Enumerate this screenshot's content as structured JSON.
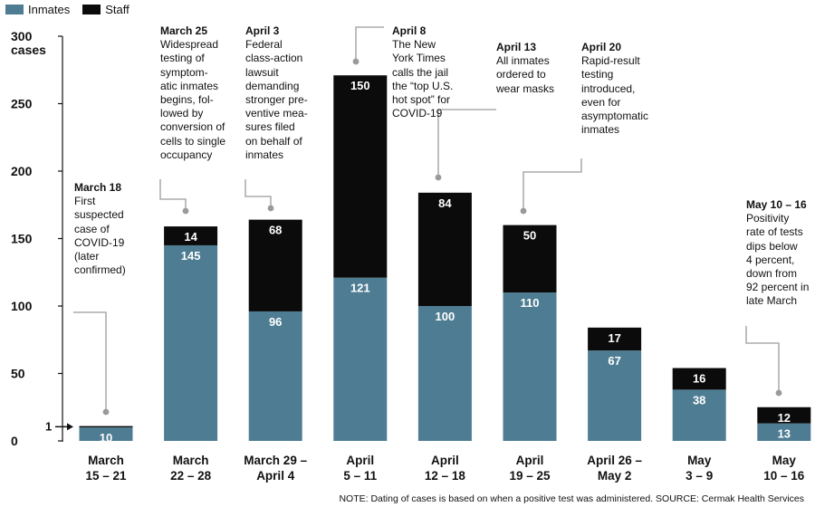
{
  "legend": [
    {
      "label": "Inmates",
      "color": "#4e7d93"
    },
    {
      "label": "Staff",
      "color": "#0b0b0b"
    }
  ],
  "chart_data": {
    "type": "bar",
    "stacked": true,
    "categories": [
      [
        "March",
        "15 – 21"
      ],
      [
        "March",
        "22 – 28"
      ],
      [
        "March 29 –",
        "April 4"
      ],
      [
        "April",
        "5 – 11"
      ],
      [
        "April",
        "12 – 18"
      ],
      [
        "April",
        "19 – 25"
      ],
      [
        "April 26 –",
        "May 2"
      ],
      [
        "May",
        "3 – 9"
      ],
      [
        "May",
        "10 – 16"
      ]
    ],
    "series": [
      {
        "name": "Inmates",
        "color": "#4e7d93",
        "values": [
          10,
          145,
          96,
          121,
          100,
          110,
          67,
          38,
          13
        ]
      },
      {
        "name": "Staff",
        "color": "#0b0b0b",
        "values": [
          1,
          14,
          68,
          150,
          84,
          50,
          17,
          16,
          12
        ]
      }
    ],
    "ylabel": "cases",
    "ylim": [
      0,
      300
    ],
    "yticks": [
      0,
      50,
      100,
      150,
      200,
      250,
      300
    ],
    "pointer_label": "1"
  },
  "annotations": [
    {
      "bar": 0,
      "title": "March 18",
      "body": [
        "First",
        "suspected",
        "case of",
        "COVID-19",
        "(later",
        "confirmed)"
      ]
    },
    {
      "bar": 1,
      "title": "March 25",
      "body": [
        "Widespread",
        "testing of",
        "symptom-",
        "atic inmates",
        "begins, fol-",
        "lowed by",
        "conversion of",
        "cells to single",
        "occupancy"
      ]
    },
    {
      "bar": 2,
      "title": "April 3",
      "body": [
        "Federal",
        "class-action",
        "lawsuit",
        "demanding",
        "stronger pre-",
        "ventive mea-",
        "sures filed",
        "on behalf of",
        "inmates"
      ]
    },
    {
      "bar": 3,
      "title": "April 8",
      "body": [
        "The New",
        "York Times",
        "calls the jail",
        "the “top U.S.",
        "hot spot” for",
        "COVID-19"
      ]
    },
    {
      "bar": 4,
      "title": "April 13",
      "body": [
        "All inmates",
        "ordered to",
        "wear masks"
      ]
    },
    {
      "bar": 5,
      "title": "April 20",
      "body": [
        "Rapid-result",
        "testing",
        "introduced,",
        "even for",
        "asymptomatic",
        "inmates"
      ]
    },
    {
      "bar": 8,
      "title": "May 10 – 16",
      "body": [
        "Positivity",
        "rate of tests",
        "dips below",
        "4 percent,",
        "down from",
        "92 percent in",
        "late March"
      ]
    }
  ],
  "note": "NOTE: Dating of cases is based on when a positive test was administered. SOURCE: Cermak Health Services"
}
